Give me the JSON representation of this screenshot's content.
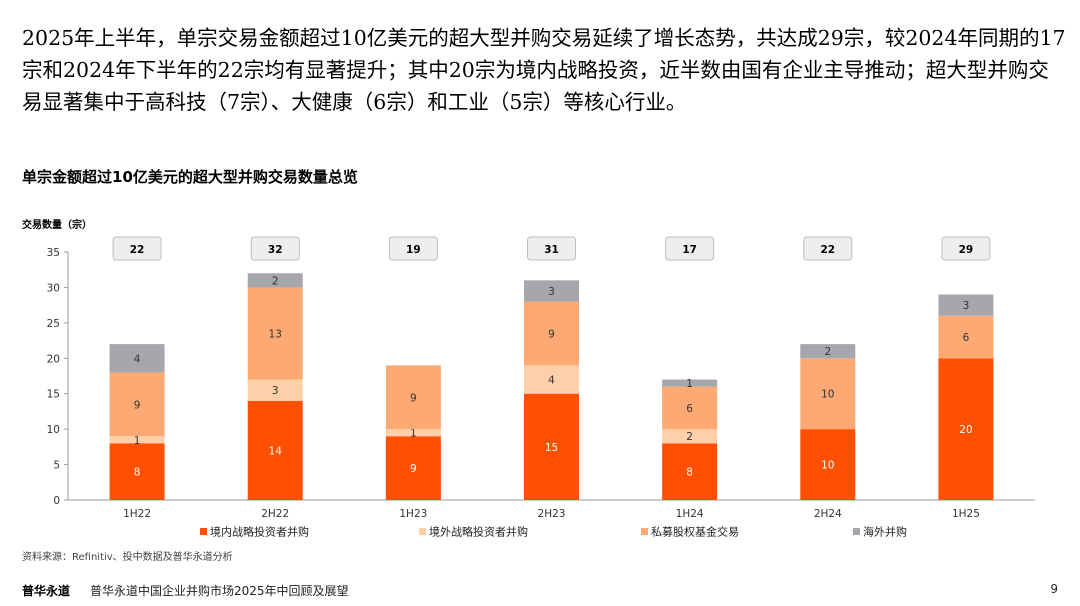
{
  "intro_text": "2025年上半年，单宗交易金额超过10亿美元的超大型并购交易延续了增长态势，共达成29宗，较2024年同期的17宗和2024年下半年的22宗均有显著提升；其中20宗为境内战略投资，近半数由国有企业主导推动；超大型并购交易显著集中于高科技（7宗）、大健康（6宗）和工业（5宗）等核心行业。",
  "chart_heading": "单宗金额超过10亿美元的超大型并购交易数量总览",
  "source_note": "资料来源：Refinitiv、投中数据及普华永道分析",
  "footer": {
    "brand": "普华永道",
    "report_title": "普华永道中国企业并购市场2025年中回顾及展望",
    "page_number": "9"
  },
  "colors": {
    "domestic": "#fe5000",
    "overseas_strategic": "#fecfa8",
    "private_equity": "#fda973",
    "outbound": "#a6a6ad",
    "total_box_fill": "#eeeeee",
    "total_box_border": "#bdbdbd"
  },
  "chart_data": {
    "type": "bar",
    "stacked": true,
    "ylabel": "交易数量（宗）",
    "ylim": [
      0,
      35
    ],
    "yticks": [
      0,
      5,
      10,
      15,
      20,
      25,
      30,
      35
    ],
    "categories": [
      "1H22",
      "2H22",
      "1H23",
      "2H23",
      "1H24",
      "2H24",
      "1H25"
    ],
    "totals": [
      22,
      32,
      19,
      31,
      17,
      22,
      29
    ],
    "legend_position": "bottom",
    "grid": false,
    "series": [
      {
        "name": "境内战略投资者并购",
        "color_key": "domestic",
        "label_color": "#ffffff",
        "values": [
          8,
          14,
          9,
          15,
          8,
          10,
          20
        ]
      },
      {
        "name": "境外战略投资者并购",
        "color_key": "overseas_strategic",
        "label_color": "#333333",
        "values": [
          1,
          3,
          1,
          4,
          2,
          0,
          0
        ]
      },
      {
        "name": "私募股权基金交易",
        "color_key": "private_equity",
        "label_color": "#333333",
        "values": [
          9,
          13,
          9,
          9,
          6,
          10,
          6
        ]
      },
      {
        "name": "海外并购",
        "color_key": "outbound",
        "label_color": "#333333",
        "values": [
          4,
          2,
          0,
          3,
          1,
          2,
          3
        ]
      }
    ]
  }
}
